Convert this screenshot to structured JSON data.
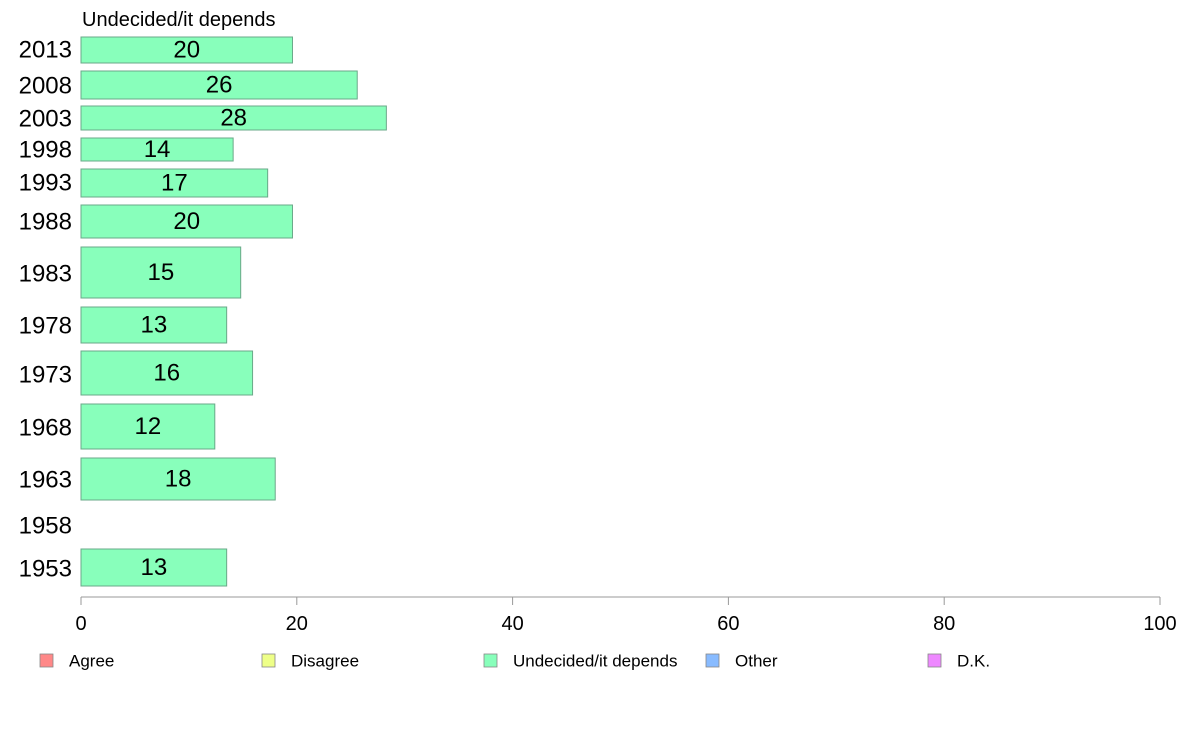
{
  "chart_data": {
    "type": "bar",
    "orientation": "horizontal",
    "title": "Undecided/it depends",
    "xlim": [
      0,
      100
    ],
    "xticks": [
      0,
      20,
      40,
      60,
      80,
      100
    ],
    "categories": [
      "2013",
      "2008",
      "2003",
      "1998",
      "1993",
      "1988",
      "1983",
      "1978",
      "1973",
      "1968",
      "1963",
      "1958",
      "1953"
    ],
    "series": [
      {
        "name": "Undecided/it depends",
        "color": "#88ffbb",
        "values": [
          19.6,
          25.6,
          28.3,
          14.1,
          17.3,
          19.6,
          14.8,
          13.5,
          15.9,
          12.4,
          18.0,
          null,
          13.5
        ],
        "labels": [
          "20",
          "26",
          "28",
          "14",
          "17",
          "20",
          "15",
          "13",
          "16",
          "12",
          "18",
          "",
          "13"
        ]
      }
    ],
    "legend": {
      "placement": "bottom",
      "items": [
        {
          "label": "Agree",
          "color": "#ff8888"
        },
        {
          "label": "Disagree",
          "color": "#eeff88"
        },
        {
          "label": "Undecided/it depends",
          "color": "#88ffbb"
        },
        {
          "label": "Other",
          "color": "#88bbff"
        },
        {
          "label": "D.K.",
          "color": "#ee88ff"
        }
      ]
    },
    "grid": false
  }
}
